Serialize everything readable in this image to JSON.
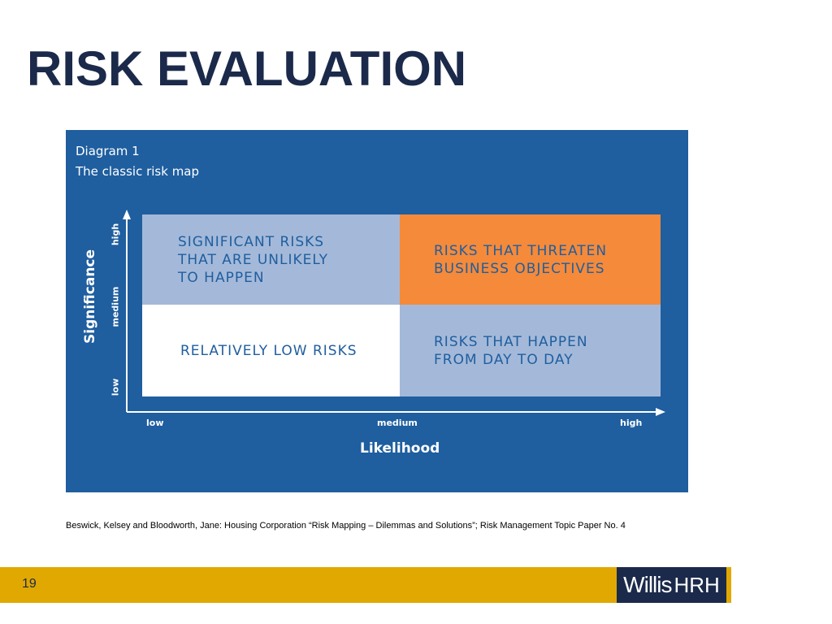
{
  "slide": {
    "title": "RISK EVALUATION",
    "page_number": "19",
    "source": "Beswick, Kelsey and Bloodworth, Jane: Housing Corporation  “Risk Mapping – Dilemmas and Solutions”; Risk Management Topic Paper No. 4"
  },
  "diagram": {
    "heading_line1": "Diagram 1",
    "heading_line2": "The classic risk map",
    "colors": {
      "panel": "#1f5e9f",
      "quadrant_light": "#a4b9d9",
      "quadrant_orange": "#f58a3a",
      "quadrant_white": "#ffffff"
    },
    "quadrants": {
      "top_left": "SIGNIFICANT RISKS\nTHAT ARE UNLIKELY\nTO HAPPEN",
      "top_right": "RISKS THAT THREATEN\nBUSINESS OBJECTIVES",
      "bottom_left": "RELATIVELY LOW RISKS",
      "bottom_right": "RISKS THAT HAPPEN\nFROM DAY TO DAY"
    },
    "x_axis": {
      "label": "Likelihood",
      "ticks": [
        "low",
        "medium",
        "high"
      ]
    },
    "y_axis": {
      "label": "Significance",
      "ticks": [
        "low",
        "medium",
        "high"
      ]
    }
  },
  "footer": {
    "logo_main": "Willis",
    "logo_suffix": "HRH",
    "bar_color": "#e0a800",
    "logo_color": "#1b2a4a"
  }
}
